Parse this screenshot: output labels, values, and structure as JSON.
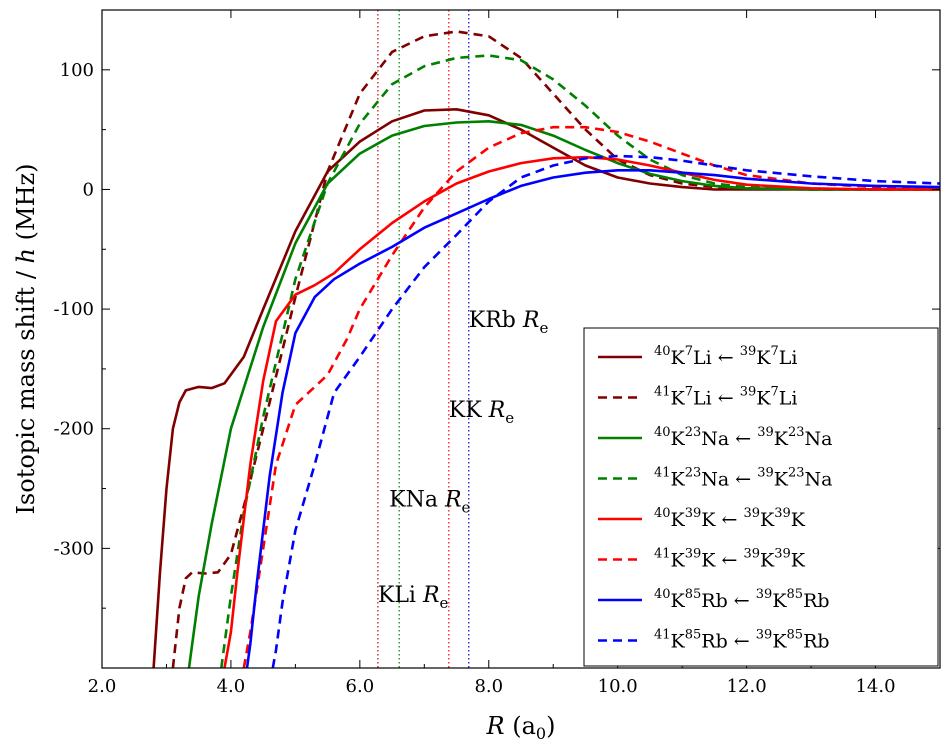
{
  "chart_data": {
    "type": "line",
    "xlabel": "R (a0)",
    "ylabel": "Isotopic mass shift / h (MHz)",
    "xlim": [
      2.0,
      15.0
    ],
    "ylim": [
      -400,
      150
    ],
    "xticks": [
      2.0,
      4.0,
      6.0,
      8.0,
      10.0,
      12.0,
      14.0
    ],
    "xtick_labels": [
      "2.0",
      "4.0",
      "6.0",
      "8.0",
      "10.0",
      "12.0",
      "14.0"
    ],
    "yticks": [
      -300,
      -200,
      -100,
      0,
      100
    ],
    "ytick_labels": [
      "-300",
      "-200",
      "-100",
      "0",
      "100"
    ],
    "grid": false,
    "legend_position": "lower-right",
    "equilibrium_lines": [
      {
        "molecule": "KLi",
        "x": 6.28,
        "color": "#cc0000",
        "label_prefix": "KLi ",
        "label_y": -345
      },
      {
        "molecule": "KNa",
        "x": 6.61,
        "color": "#008000",
        "label_prefix": "KNa ",
        "label_y": -265
      },
      {
        "molecule": "KK",
        "x": 7.38,
        "color": "#ff0000",
        "label_prefix": "KK ",
        "label_y": -190
      },
      {
        "molecule": "KRb",
        "x": 7.69,
        "color": "#0000cc",
        "label_prefix": "KRb ",
        "label_y": -115
      }
    ],
    "re_label_suffix": "R",
    "re_label_subscript": "e",
    "series": [
      {
        "name": "40K7Li <- 39K7Li",
        "legend": {
          "left_mass": "40",
          "left_el1": "K",
          "left_mass2": "7",
          "left_el2": "Li",
          "arrow": "←",
          "right_mass": "39",
          "right_el1": "K",
          "right_mass2": "7",
          "right_el2": "Li"
        },
        "color": "#800000",
        "dash": "solid",
        "x": [
          2.8,
          2.9,
          3.0,
          3.1,
          3.2,
          3.3,
          3.5,
          3.7,
          3.9,
          4.2,
          4.5,
          5.0,
          5.5,
          6.0,
          6.5,
          7.0,
          7.5,
          8.0,
          8.5,
          9.0,
          9.5,
          10.0,
          10.5,
          11.0,
          11.5,
          12.0,
          13.0,
          14.0,
          15.0
        ],
        "y": [
          -400,
          -320,
          -250,
          -200,
          -178,
          -168,
          -165,
          -166,
          -162,
          -140,
          -100,
          -35,
          15,
          40,
          57,
          66,
          67,
          62,
          50,
          35,
          20,
          10,
          5,
          2,
          0,
          0,
          0,
          0,
          0
        ]
      },
      {
        "name": "41K7Li <- 39K7Li",
        "legend": {
          "left_mass": "41",
          "left_el1": "K",
          "left_mass2": "7",
          "left_el2": "Li",
          "arrow": "←",
          "right_mass": "39",
          "right_el1": "K",
          "right_mass2": "7",
          "right_el2": "Li"
        },
        "color": "#800000",
        "dash": "dashed",
        "x": [
          3.1,
          3.2,
          3.3,
          3.4,
          3.6,
          3.8,
          4.0,
          4.2,
          4.5,
          5.0,
          5.5,
          6.0,
          6.5,
          7.0,
          7.5,
          8.0,
          8.5,
          9.0,
          9.5,
          10.0,
          10.5,
          11.0,
          11.5,
          12.0,
          13.0,
          14.0,
          15.0
        ],
        "y": [
          -400,
          -350,
          -325,
          -320,
          -321,
          -320,
          -305,
          -265,
          -200,
          -90,
          15,
          80,
          115,
          128,
          132,
          128,
          110,
          80,
          50,
          25,
          12,
          5,
          2,
          1,
          0,
          0,
          0
        ]
      },
      {
        "name": "40K23Na <- 39K23Na",
        "legend": {
          "left_mass": "40",
          "left_el1": "K",
          "left_mass2": "23",
          "left_el2": "Na",
          "arrow": "←",
          "right_mass": "39",
          "right_el1": "K",
          "right_mass2": "23",
          "right_el2": "Na"
        },
        "color": "#008000",
        "dash": "solid",
        "x": [
          3.35,
          3.4,
          3.5,
          3.7,
          4.0,
          4.5,
          5.0,
          5.5,
          6.0,
          6.5,
          7.0,
          7.5,
          8.0,
          8.5,
          9.0,
          9.5,
          10.0,
          10.5,
          11.0,
          11.5,
          12.0,
          13.0,
          14.0,
          15.0
        ],
        "y": [
          -400,
          -380,
          -340,
          -280,
          -200,
          -115,
          -45,
          5,
          30,
          45,
          53,
          56,
          57,
          54,
          45,
          33,
          22,
          13,
          7,
          3,
          1,
          0,
          0,
          0
        ]
      },
      {
        "name": "41K23Na <- 39K23Na",
        "legend": {
          "left_mass": "41",
          "left_el1": "K",
          "left_mass2": "23",
          "left_el2": "Na",
          "arrow": "←",
          "right_mass": "39",
          "right_el1": "K",
          "right_mass2": "23",
          "right_el2": "Na"
        },
        "color": "#008000",
        "dash": "dashed",
        "x": [
          3.85,
          3.9,
          4.0,
          4.2,
          4.5,
          5.0,
          5.5,
          6.0,
          6.5,
          7.0,
          7.5,
          8.0,
          8.5,
          9.0,
          9.5,
          10.0,
          10.5,
          11.0,
          11.5,
          12.0,
          13.0,
          14.0,
          15.0
        ],
        "y": [
          -400,
          -380,
          -340,
          -270,
          -190,
          -75,
          5,
          55,
          88,
          103,
          110,
          112,
          108,
          92,
          70,
          45,
          25,
          12,
          5,
          2,
          0,
          0,
          0
        ]
      },
      {
        "name": "40K39K <- 39K39K",
        "legend": {
          "left_mass": "40",
          "left_el1": "K",
          "left_mass2": "39",
          "left_el2": "K",
          "arrow": "←",
          "right_mass": "39",
          "right_el1": "K",
          "right_mass2": "39",
          "right_el2": "K"
        },
        "color": "#ff0000",
        "dash": "solid",
        "x": [
          3.9,
          4.0,
          4.1,
          4.3,
          4.5,
          4.7,
          5.0,
          5.3,
          5.6,
          6.0,
          6.5,
          7.0,
          7.5,
          8.0,
          8.5,
          9.0,
          9.5,
          10.0,
          10.5,
          11.0,
          11.5,
          12.0,
          13.0,
          14.0,
          15.0
        ],
        "y": [
          -400,
          -370,
          -320,
          -230,
          -160,
          -110,
          -88,
          -80,
          -70,
          -50,
          -28,
          -10,
          5,
          15,
          22,
          26,
          27,
          25,
          20,
          14,
          8,
          4,
          1,
          0,
          0
        ]
      },
      {
        "name": "41K39K <- 39K39K",
        "legend": {
          "left_mass": "41",
          "left_el1": "K",
          "left_mass2": "39",
          "left_el2": "K",
          "arrow": "←",
          "right_mass": "39",
          "right_el1": "K",
          "right_mass2": "39",
          "right_el2": "K"
        },
        "color": "#ff0000",
        "dash": "dashed",
        "x": [
          4.2,
          4.3,
          4.5,
          4.7,
          5.0,
          5.2,
          5.5,
          5.8,
          6.0,
          6.5,
          7.0,
          7.5,
          8.0,
          8.5,
          9.0,
          9.5,
          10.0,
          10.5,
          11.0,
          11.5,
          12.0,
          13.0,
          14.0,
          15.0
        ],
        "y": [
          -400,
          -370,
          -300,
          -230,
          -180,
          -170,
          -155,
          -125,
          -100,
          -55,
          -15,
          15,
          35,
          47,
          52,
          52,
          48,
          40,
          30,
          20,
          12,
          5,
          2,
          1
        ]
      },
      {
        "name": "40K85Rb <- 39K85Rb",
        "legend": {
          "left_mass": "40",
          "left_el1": "K",
          "left_mass2": "85",
          "left_el2": "Rb",
          "arrow": "←",
          "right_mass": "39",
          "right_el1": "K",
          "right_mass2": "85",
          "right_el2": "Rb"
        },
        "color": "#0000ff",
        "dash": "solid",
        "x": [
          4.25,
          4.3,
          4.4,
          4.6,
          4.8,
          5.0,
          5.3,
          5.6,
          6.0,
          6.5,
          7.0,
          7.5,
          8.0,
          8.5,
          9.0,
          9.5,
          10.0,
          10.5,
          11.0,
          11.5,
          12.0,
          13.0,
          14.0,
          15.0
        ],
        "y": [
          -400,
          -380,
          -330,
          -240,
          -170,
          -120,
          -90,
          -75,
          -62,
          -48,
          -32,
          -20,
          -8,
          3,
          10,
          14,
          16,
          16,
          14,
          12,
          9,
          5,
          3,
          2
        ]
      },
      {
        "name": "41K85Rb <- 39K85Rb",
        "legend": {
          "left_mass": "41",
          "left_el1": "K",
          "left_mass2": "85",
          "left_el2": "Rb",
          "arrow": "←",
          "right_mass": "39",
          "right_el1": "K",
          "right_mass2": "85",
          "right_el2": "Rb"
        },
        "color": "#0000ff",
        "dash": "dashed",
        "x": [
          4.65,
          4.7,
          4.8,
          5.0,
          5.3,
          5.6,
          6.0,
          6.5,
          7.0,
          7.5,
          8.0,
          8.5,
          9.0,
          9.5,
          10.0,
          10.5,
          11.0,
          11.5,
          12.0,
          13.0,
          14.0,
          15.0
        ],
        "y": [
          -400,
          -385,
          -345,
          -285,
          -230,
          -170,
          -140,
          -100,
          -65,
          -38,
          -10,
          10,
          20,
          26,
          28,
          27,
          24,
          20,
          16,
          11,
          7,
          5
        ]
      }
    ]
  }
}
